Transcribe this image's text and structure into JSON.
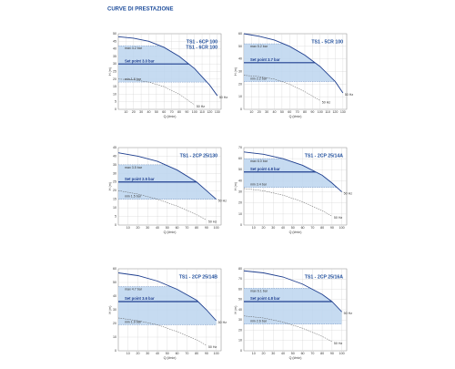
{
  "heading": "CURVE DI PRESTAZIONE",
  "chart_data": [
    {
      "type": "line",
      "title": "TS1 - 6CP 100",
      "subtitle": "TS1 - 6CR 100",
      "xlabel": "Q (l/min)",
      "ylabel": "H (m)",
      "xlim": [
        0,
        135
      ],
      "xticks": [
        10,
        20,
        30,
        40,
        50,
        60,
        70,
        80,
        90,
        100,
        110,
        120,
        130
      ],
      "ylim": [
        0,
        50
      ],
      "yticks": [
        0,
        5,
        10,
        15,
        20,
        25,
        30,
        35,
        40,
        45,
        50
      ],
      "grid": true,
      "x": [
        0,
        20,
        40,
        60,
        80,
        100,
        120,
        130
      ],
      "series": [
        {
          "color": "#1f3f8f",
          "values": [
            48,
            47,
            45,
            41,
            35,
            27,
            16,
            9
          ],
          "end_label": "50 Hz"
        },
        {
          "color": "#555555",
          "dashed": true,
          "values": [
            20,
            19.5,
            18,
            15,
            10,
            3,
            null,
            null
          ],
          "end_label": "50 Hz"
        }
      ],
      "max": {
        "label": "max 4.2 bar",
        "value": 42
      },
      "setpoint": {
        "label": "Set point 3.0 bar",
        "value": 30
      },
      "min": {
        "label": "min 1.8 bar",
        "value": 18
      }
    },
    {
      "type": "line",
      "title": "TS1 - 5CR 100",
      "xlabel": "Q (l/min)",
      "ylabel": "H (m)",
      "xlim": [
        0,
        135
      ],
      "xticks": [
        10,
        20,
        30,
        40,
        50,
        60,
        70,
        80,
        90,
        100,
        110,
        120,
        130
      ],
      "ylim": [
        0,
        60
      ],
      "yticks": [
        0,
        10,
        20,
        30,
        40,
        50,
        60
      ],
      "grid": true,
      "x": [
        0,
        20,
        40,
        60,
        80,
        100,
        120,
        130
      ],
      "series": [
        {
          "color": "#1f3f8f",
          "values": [
            60,
            58,
            55,
            50,
            43,
            34,
            22,
            13
          ],
          "end_label": "50 Hz"
        },
        {
          "color": "#555555",
          "dashed": true,
          "values": [
            27,
            26,
            24,
            20,
            14,
            7,
            null,
            null
          ],
          "end_label": "50 Hz"
        }
      ],
      "max": {
        "label": "max 5.2 bar",
        "value": 52
      },
      "setpoint": {
        "label": "Set point 3.7 bar",
        "value": 37
      },
      "min": {
        "label": "min 2.2 bar",
        "value": 22
      }
    },
    {
      "type": "line",
      "title": "TS1 - 2CP 25/130",
      "xlabel": "Q (l/min)",
      "ylabel": "H (m)",
      "xlim": [
        0,
        105
      ],
      "xticks": [
        10,
        20,
        30,
        40,
        50,
        60,
        70,
        80,
        90,
        100
      ],
      "ylim": [
        0,
        45
      ],
      "yticks": [
        0,
        5,
        10,
        15,
        20,
        25,
        30,
        35,
        40,
        45
      ],
      "grid": true,
      "x": [
        0,
        20,
        40,
        60,
        80,
        90,
        100
      ],
      "series": [
        {
          "color": "#1f3f8f",
          "values": [
            42,
            40,
            37,
            32,
            25,
            20,
            15
          ],
          "end_label": "50 Hz"
        },
        {
          "color": "#555555",
          "dashed": true,
          "values": [
            20,
            18,
            15,
            11,
            6,
            3,
            null
          ],
          "end_label": "50 Hz"
        }
      ],
      "max": {
        "label": "max 3.5 bar",
        "value": 35
      },
      "setpoint": {
        "label": "Set point 2.5 bar",
        "value": 25
      },
      "min": {
        "label": "min 1.5 bar",
        "value": 15
      }
    },
    {
      "type": "line",
      "title": "TS1 - 2CP 25/14A",
      "xlabel": "Q (l/min)",
      "ylabel": "H (m)",
      "xlim": [
        0,
        105
      ],
      "xticks": [
        10,
        20,
        30,
        40,
        50,
        60,
        70,
        80,
        90,
        100
      ],
      "ylim": [
        0,
        70
      ],
      "yticks": [
        0,
        10,
        20,
        30,
        40,
        50,
        60,
        70
      ],
      "grid": true,
      "x": [
        0,
        20,
        40,
        60,
        80,
        90,
        100
      ],
      "series": [
        {
          "color": "#1f3f8f",
          "values": [
            66,
            64,
            60,
            54,
            45,
            38,
            30
          ],
          "end_label": "50 Hz"
        },
        {
          "color": "#555555",
          "dashed": true,
          "values": [
            33,
            31,
            27,
            21,
            13,
            8,
            null
          ],
          "end_label": "50 Hz"
        }
      ],
      "max": {
        "label": "max 6.0 bar",
        "value": 60
      },
      "setpoint": {
        "label": "Set point 4.8 bar",
        "value": 48
      },
      "min": {
        "label": "min 3.4 bar",
        "value": 34
      }
    },
    {
      "type": "line",
      "title": "TS1 - 2CP 25/14B",
      "xlabel": "Q (l/min)",
      "ylabel": "H (m)",
      "xlim": [
        0,
        105
      ],
      "xticks": [
        10,
        20,
        30,
        40,
        50,
        60,
        70,
        80,
        90,
        100
      ],
      "ylim": [
        0,
        60
      ],
      "yticks": [
        0,
        10,
        20,
        30,
        40,
        50,
        60
      ],
      "grid": true,
      "x": [
        0,
        20,
        40,
        60,
        80,
        90,
        100
      ],
      "series": [
        {
          "color": "#1f3f8f",
          "values": [
            57,
            55,
            51,
            45,
            37,
            30,
            22
          ],
          "end_label": "50 Hz"
        },
        {
          "color": "#555555",
          "dashed": true,
          "values": [
            24,
            22,
            19,
            14,
            8,
            4,
            null
          ],
          "end_label": "50 Hz"
        }
      ],
      "max": {
        "label": "max 4.7 bar",
        "value": 47
      },
      "setpoint": {
        "label": "Set point 3.6 bar",
        "value": 36
      },
      "min": {
        "label": "min 1.9 bar",
        "value": 19
      }
    },
    {
      "type": "line",
      "title": "TS1 - 2CP 25/16A",
      "xlabel": "Q (l/min)",
      "ylabel": "H (m)",
      "xlim": [
        0,
        105
      ],
      "xticks": [
        10,
        20,
        30,
        40,
        50,
        60,
        70,
        80,
        90,
        100
      ],
      "ylim": [
        0,
        80
      ],
      "yticks": [
        0,
        10,
        20,
        30,
        40,
        50,
        60,
        70,
        80
      ],
      "grid": true,
      "x": [
        0,
        20,
        40,
        60,
        80,
        90,
        100
      ],
      "series": [
        {
          "color": "#1f3f8f",
          "values": [
            78,
            76,
            72,
            65,
            55,
            48,
            38
          ],
          "end_label": "50 Hz"
        },
        {
          "color": "#555555",
          "dashed": true,
          "values": [
            34,
            32,
            28,
            22,
            14,
            9,
            null
          ],
          "end_label": "50 Hz"
        }
      ],
      "max": {
        "label": "max 6.1 bar",
        "value": 61
      },
      "setpoint": {
        "label": "Set point 4.8 bar",
        "value": 48
      },
      "min": {
        "label": "min 2.6 bar",
        "value": 26
      }
    }
  ]
}
